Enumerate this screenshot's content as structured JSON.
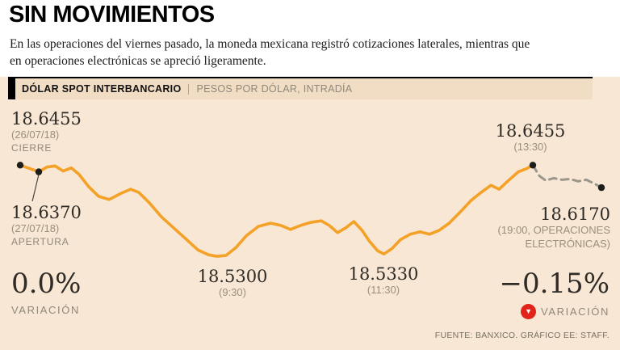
{
  "header": {
    "title": "SIN MOVIMIENTOS",
    "subtitle": "En las operaciones del viernes pasado, la moneda mexicana registró cotizaciones laterales, mientras que en operaciones electrónicas se apreció ligeramente."
  },
  "kicker": {
    "label": "DÓLAR SPOT INTERBANCARIO",
    "sublabel": "PESOS POR DÓLAR, INTRADÍA"
  },
  "annotations": {
    "cierre": {
      "value": "18.6455",
      "date": "(26/07/18)",
      "label": "CIERRE"
    },
    "apertura": {
      "value": "18.6370",
      "date": "(27/07/18)",
      "label": "APERTURA"
    },
    "low_930": {
      "value": "18.5300",
      "time": "(9:30)"
    },
    "low_1130": {
      "value": "18.5330",
      "time": "(11:30)"
    },
    "high_1330": {
      "value": "18.6455",
      "time": "(13:30)"
    },
    "electronico": {
      "value": "18.6170",
      "line1": "(19:00, OPERACIONES",
      "line2": "ELECTRÓNICAS)"
    }
  },
  "stats": {
    "spot": {
      "value": "0.0%",
      "label": "VARIACIÓN"
    },
    "electronico": {
      "value": "−0.15%",
      "label": "VARIACIÓN"
    }
  },
  "footer": {
    "credit": "FUENTE: BANXICO. GRÁFICO EE: STAFF."
  },
  "colors": {
    "background": "#f8e7d4",
    "band": "#f1dcc4",
    "line_orange": "#F4A128",
    "line_dashed_gray": "#9b968c",
    "marker_black": "#1d1d1b",
    "accent_red": "#e2231a",
    "text_dark": "#2f2b26",
    "text_gray": "#8f887a"
  },
  "chart_data": {
    "type": "line",
    "title": "DÓLAR SPOT INTERBANCARIO — PESOS POR DÓLAR, INTRADÍA",
    "ylabel": "Pesos por dólar",
    "ylim": [
      18.525,
      18.655
    ],
    "grid": false,
    "legend": "none",
    "key_values": {
      "cierre_previo_26_07": 18.6455,
      "apertura_27_07": 18.637,
      "minimo_930": 18.53,
      "minimo_1130": 18.533,
      "maximo_1330": 18.6455,
      "cierre_electronico_1900": 18.617,
      "variacion_spot_pct": 0.0,
      "variacion_electronica_pct": -0.15
    },
    "series": [
      {
        "name": "Spot interbancario (intradía)",
        "style": "solid",
        "color": "#F4A128",
        "points": [
          [
            0.0,
            18.6455
          ],
          [
            0.021,
            18.64
          ],
          [
            0.032,
            18.637
          ],
          [
            0.046,
            18.643
          ],
          [
            0.06,
            18.6445
          ],
          [
            0.074,
            18.638
          ],
          [
            0.088,
            18.642
          ],
          [
            0.101,
            18.634
          ],
          [
            0.118,
            18.618
          ],
          [
            0.135,
            18.606
          ],
          [
            0.153,
            18.602
          ],
          [
            0.174,
            18.61
          ],
          [
            0.19,
            18.615
          ],
          [
            0.204,
            18.611
          ],
          [
            0.222,
            18.598
          ],
          [
            0.243,
            18.58
          ],
          [
            0.264,
            18.566
          ],
          [
            0.285,
            18.552
          ],
          [
            0.306,
            18.538
          ],
          [
            0.324,
            18.532
          ],
          [
            0.338,
            18.53
          ],
          [
            0.354,
            18.531
          ],
          [
            0.371,
            18.541
          ],
          [
            0.389,
            18.556
          ],
          [
            0.41,
            18.568
          ],
          [
            0.431,
            18.572
          ],
          [
            0.449,
            18.569
          ],
          [
            0.465,
            18.564
          ],
          [
            0.482,
            18.569
          ],
          [
            0.5,
            18.573
          ],
          [
            0.518,
            18.575
          ],
          [
            0.532,
            18.569
          ],
          [
            0.546,
            18.56
          ],
          [
            0.56,
            18.566
          ],
          [
            0.574,
            18.574
          ],
          [
            0.588,
            18.563
          ],
          [
            0.601,
            18.549
          ],
          [
            0.615,
            18.537
          ],
          [
            0.626,
            18.533
          ],
          [
            0.64,
            18.54
          ],
          [
            0.654,
            18.551
          ],
          [
            0.671,
            18.558
          ],
          [
            0.688,
            18.561
          ],
          [
            0.704,
            18.558
          ],
          [
            0.721,
            18.563
          ],
          [
            0.738,
            18.572
          ],
          [
            0.757,
            18.586
          ],
          [
            0.776,
            18.601
          ],
          [
            0.793,
            18.611
          ],
          [
            0.81,
            18.62
          ],
          [
            0.824,
            18.615
          ],
          [
            0.84,
            18.626
          ],
          [
            0.857,
            18.637
          ],
          [
            0.871,
            18.641
          ],
          [
            0.882,
            18.6455
          ]
        ]
      },
      {
        "name": "Operaciones electrónicas",
        "style": "dashed",
        "color": "#9b968c",
        "points": [
          [
            0.882,
            18.6455
          ],
          [
            0.893,
            18.632
          ],
          [
            0.904,
            18.626
          ],
          [
            0.918,
            18.629
          ],
          [
            0.932,
            18.627
          ],
          [
            0.946,
            18.628
          ],
          [
            0.96,
            18.625
          ],
          [
            0.974,
            18.627
          ],
          [
            0.988,
            18.622
          ],
          [
            1.0,
            18.617
          ]
        ]
      }
    ],
    "markers": [
      [
        0.0,
        18.6455
      ],
      [
        0.032,
        18.637
      ],
      [
        0.882,
        18.6455
      ],
      [
        1.0,
        18.617
      ]
    ]
  }
}
